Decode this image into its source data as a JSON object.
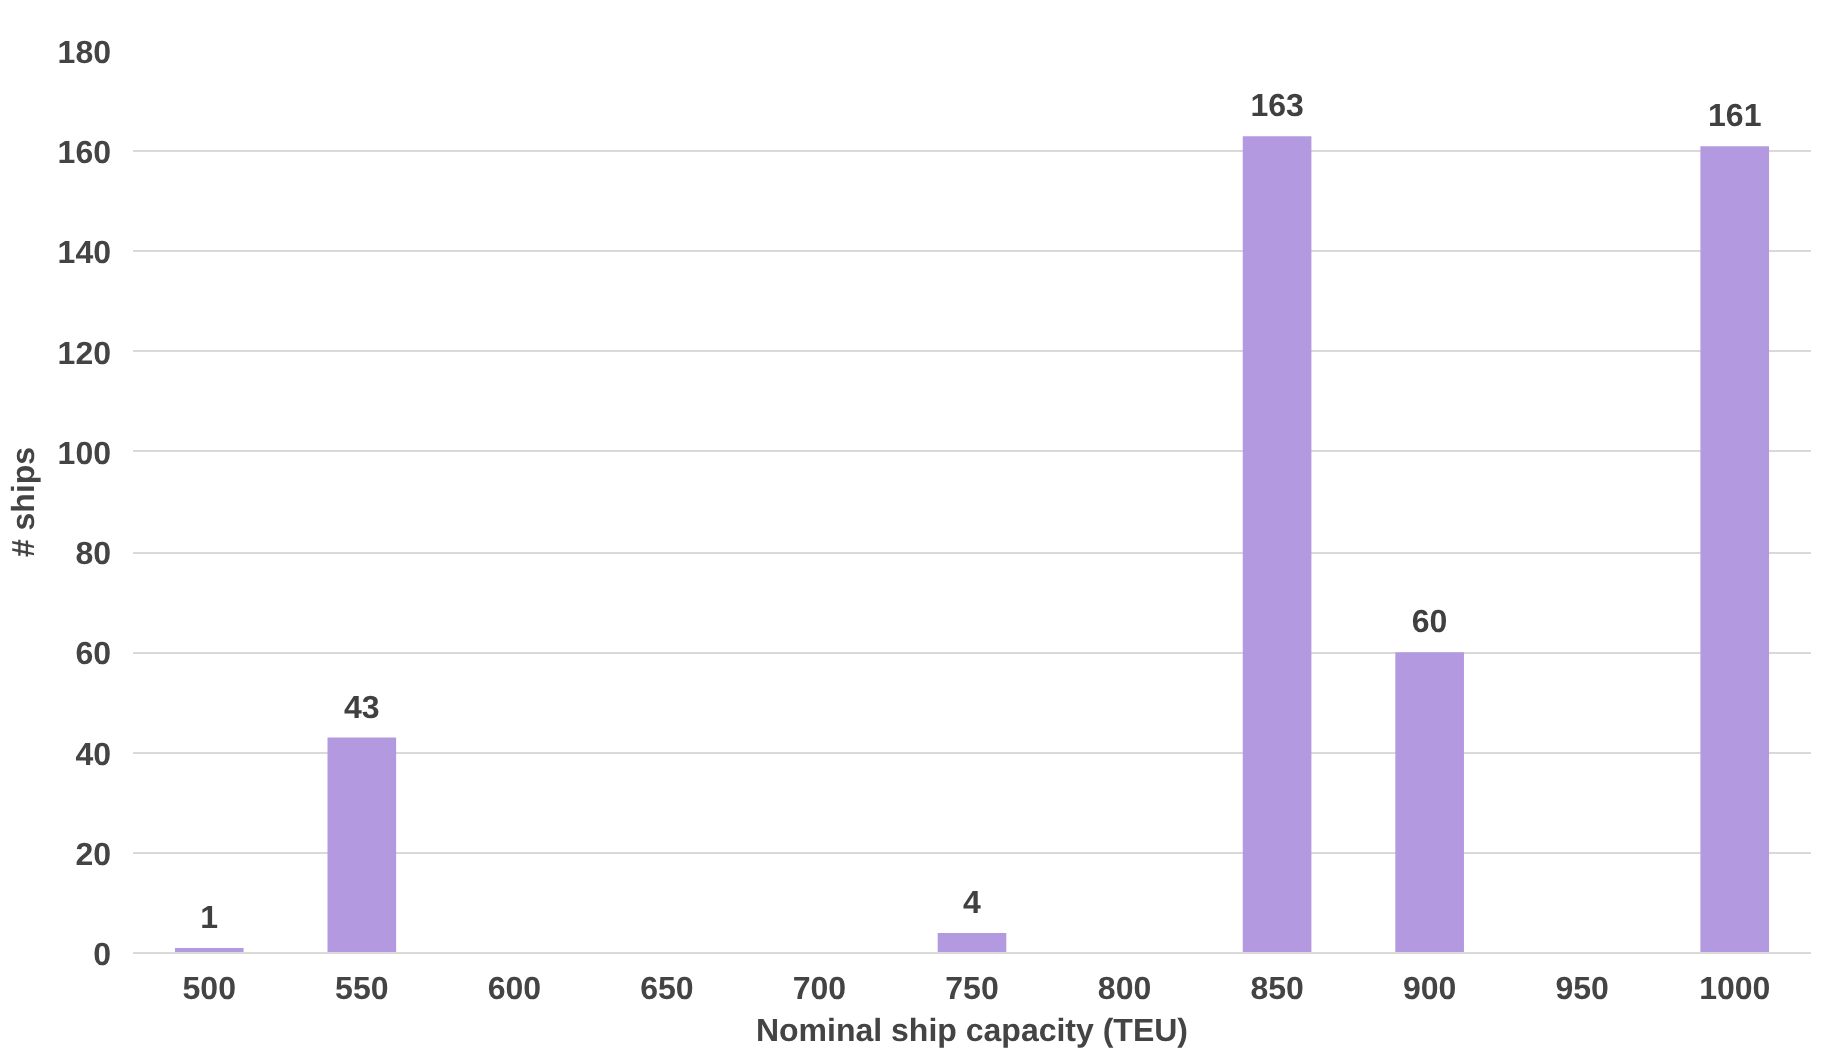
{
  "chart_data": {
    "type": "bar",
    "xlabel": "Nominal ship capacity (TEU)",
    "ylabel": "# ships",
    "categories": [
      "500",
      "550",
      "600",
      "650",
      "700",
      "750",
      "800",
      "850",
      "900",
      "950",
      "1000"
    ],
    "values": [
      1,
      43,
      0,
      0,
      0,
      4,
      0,
      163,
      60,
      0,
      161
    ],
    "value_labels": [
      "1",
      "43",
      null,
      null,
      null,
      "4",
      null,
      "163",
      "60",
      null,
      "161"
    ],
    "color": "#b39ae0",
    "ylim": [
      0,
      180
    ],
    "yticks": [
      0,
      20,
      40,
      60,
      80,
      100,
      120,
      140,
      160,
      180
    ],
    "grid": "y"
  }
}
